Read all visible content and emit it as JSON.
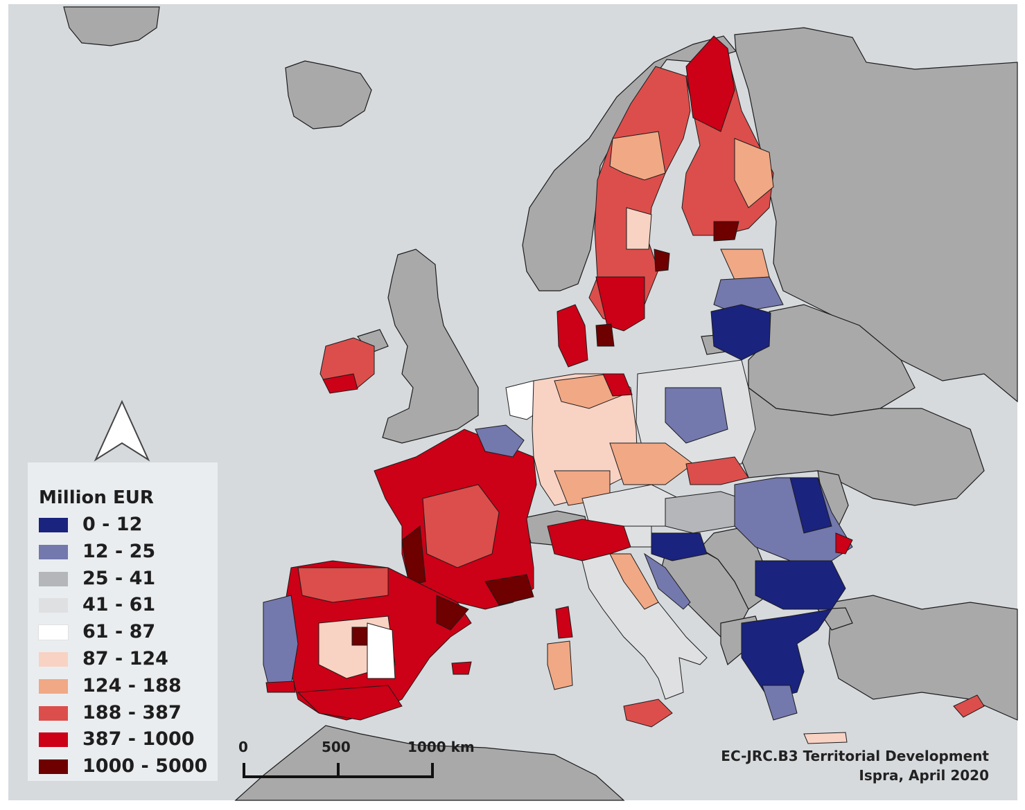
{
  "legend": {
    "title": "Million EUR",
    "classes": [
      {
        "label": "0 - 12",
        "color": "#1a237e"
      },
      {
        "label": "12 - 25",
        "color": "#7378ad"
      },
      {
        "label": "25 - 41",
        "color": "#b4b6b9"
      },
      {
        "label": "41 - 61",
        "color": "#dfe0e2"
      },
      {
        "label": "61 - 87",
        "color": "#ffffff"
      },
      {
        "label": "87 - 124",
        "color": "#f8d2c3"
      },
      {
        "label": "124 - 188",
        "color": "#f1a885"
      },
      {
        "label": "188 - 387",
        "color": "#dc4e4b"
      },
      {
        "label": "387 - 1000",
        "color": "#cc0016"
      },
      {
        "label": "1000 - 5000",
        "color": "#6e0000"
      }
    ]
  },
  "scale_bar": {
    "labels": [
      "0",
      "500",
      "1000 km"
    ]
  },
  "north_arrow": {
    "icon": "north-arrow-icon"
  },
  "credit": {
    "line1": "EC-JRC.B3 Territorial Development",
    "line2": "Ispra, April 2020"
  },
  "colors": {
    "sea": "#d6dadd",
    "non_eu_land": "#a9a9a9",
    "border": "#1b1b1b"
  }
}
